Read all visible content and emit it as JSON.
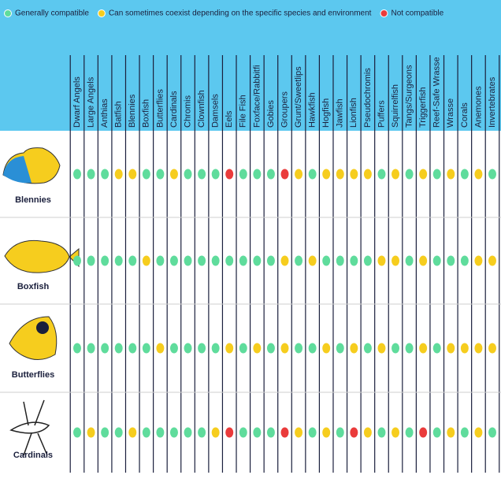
{
  "legend": [
    {
      "label": "Generally compatible",
      "color": "#5fdc9c"
    },
    {
      "label": "Can sometimes coexist depending on the specific species and environment",
      "color": "#f6cd1e"
    },
    {
      "label": "Not compatible",
      "color": "#ea3b3b"
    }
  ],
  "table": {
    "columns": [
      "Dwarf Angels",
      "Large Angels",
      "Anthias",
      "Batfish",
      "Blennies",
      "Boxfish",
      "Butterflies",
      "Cardinals",
      "Chromis",
      "Clownfish",
      "Damsels",
      "Eels",
      "File Fish",
      "Foxface/Rabbitfi",
      "Gobies",
      "Groupers",
      "Grunt/Sweetlips",
      "Hawkfish",
      "Hogfish",
      "Jawfish",
      "Lionfish",
      "Pseudochromis",
      "Puffers",
      "Squirrelfish",
      "Tangs/Surgeons",
      "Triggerfish",
      "Reef-Safe Wrasse",
      "Wrasse",
      "Corals",
      "Anemones",
      "Invertebrates"
    ],
    "rows": [
      {
        "label": "Blennies",
        "cells": [
          0,
          0,
          0,
          1,
          1,
          0,
          0,
          1,
          0,
          0,
          0,
          2,
          0,
          0,
          0,
          2,
          1,
          0,
          1,
          1,
          1,
          1,
          0,
          1,
          0,
          1,
          0,
          1,
          0,
          1,
          0
        ]
      },
      {
        "label": "Boxfish",
        "cells": [
          0,
          0,
          0,
          0,
          0,
          1,
          0,
          0,
          0,
          0,
          0,
          0,
          0,
          0,
          0,
          1,
          0,
          1,
          0,
          0,
          0,
          0,
          1,
          1,
          0,
          1,
          0,
          0,
          0,
          1,
          1
        ]
      },
      {
        "label": "Butterflies",
        "cells": [
          0,
          0,
          0,
          0,
          0,
          0,
          1,
          0,
          0,
          0,
          0,
          1,
          0,
          1,
          0,
          1,
          0,
          0,
          1,
          0,
          1,
          0,
          1,
          0,
          0,
          1,
          0,
          1,
          1,
          1,
          1
        ]
      },
      {
        "label": "Cardinals",
        "cells": [
          0,
          1,
          0,
          0,
          1,
          0,
          0,
          0,
          0,
          0,
          1,
          2,
          0,
          0,
          0,
          2,
          1,
          0,
          1,
          0,
          2,
          1,
          0,
          1,
          0,
          2,
          0,
          1,
          0,
          1,
          0
        ]
      }
    ]
  }
}
